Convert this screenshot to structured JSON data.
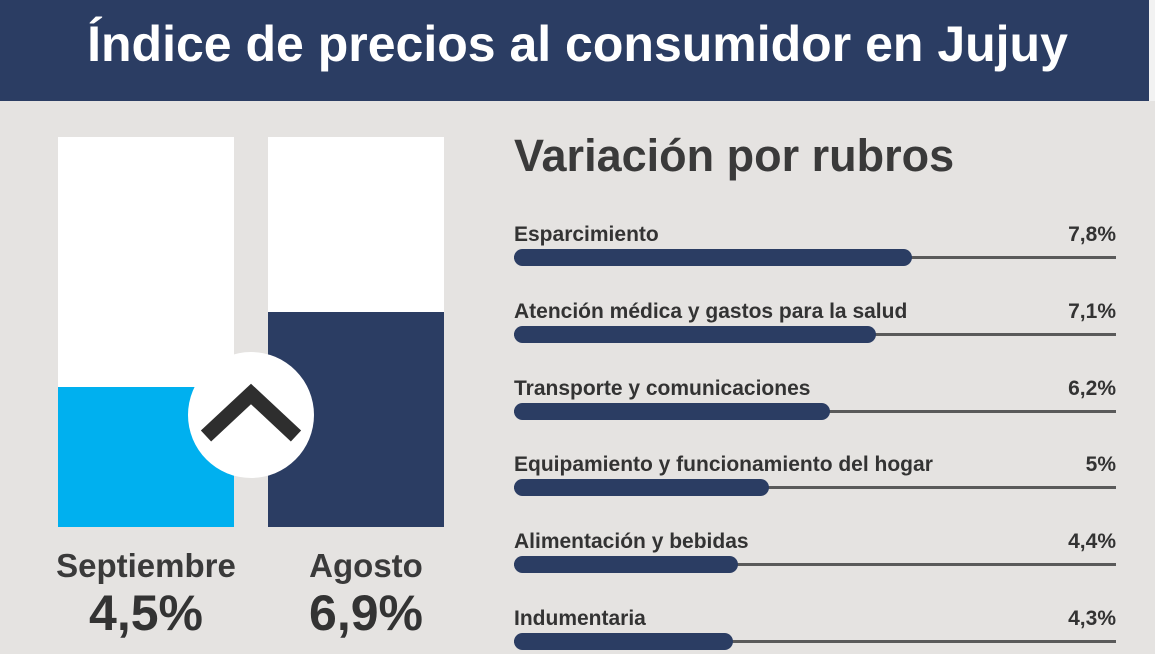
{
  "header": {
    "title": "Índice de precios al consumidor en Jujuy"
  },
  "colors": {
    "header_bg": "#2b3d63",
    "background": "#e5e3e1",
    "septiembre": "#00b0ef",
    "agosto": "#2b3d63",
    "bar": "#2b3d63"
  },
  "icon": "chevron-up-icon",
  "chart_data": [
    {
      "type": "bar",
      "categories": [
        "Septiembre",
        "Agosto"
      ],
      "values": [
        4.5,
        6.9
      ],
      "value_labels": [
        "4,5%",
        "6,9%"
      ],
      "ylim": [
        0,
        12.5
      ]
    },
    {
      "type": "bar",
      "orientation": "horizontal",
      "title": "Variación por rubros",
      "categories": [
        "Esparcimiento",
        "Atención médica y gastos para la salud",
        "Transporte y comunicaciones",
        "Equipamiento y funcionamiento del hogar",
        "Alimentación y bebidas",
        "Indumentaria"
      ],
      "values": [
        7.8,
        7.1,
        6.2,
        5,
        4.4,
        4.3
      ],
      "value_labels": [
        "7,8%",
        "7,1%",
        "6,2%",
        "5%",
        "4,4%",
        "4,3%"
      ],
      "xlim": [
        0,
        11.8
      ]
    }
  ]
}
